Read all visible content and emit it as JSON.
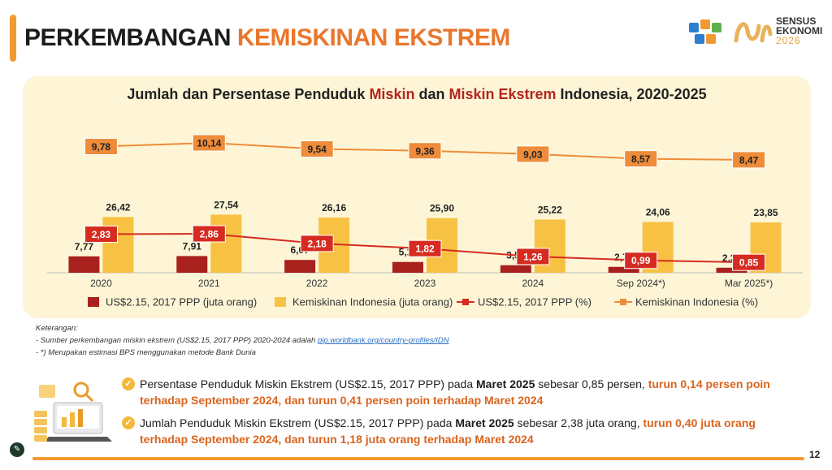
{
  "header": {
    "title_part1": "PERKEMBANGAN",
    "title_part2": "KEMISKINAN EKSTREM",
    "logo_line1": "SENSUS",
    "logo_line2": "EKONOMI",
    "logo_line3": "2026"
  },
  "chart_title": {
    "t1": "Jumlah dan Persentase Penduduk ",
    "t2": "Miskin",
    "t3": " dan ",
    "t4": "Miskin Ekstrem",
    "t5": " Indonesia, 2020-2025"
  },
  "chart_data": {
    "type": "bar+line",
    "categories": [
      "2020",
      "2021",
      "2022",
      "2023",
      "2024",
      "Sep 2024*)",
      "Mar 2025*)"
    ],
    "series": [
      {
        "name": "US$2.15, 2017 PPP (juta orang)",
        "kind": "bar",
        "color": "#a8211d",
        "values": [
          7.77,
          7.91,
          6.07,
          5.11,
          3.56,
          2.78,
          2.38
        ],
        "labels": [
          "7,77",
          "7,91",
          "6,07",
          "5,11",
          "3,56",
          "2,78",
          "2,38"
        ]
      },
      {
        "name": "Kemiskinan Indonesia (juta orang)",
        "kind": "bar",
        "color": "#f7c244",
        "values": [
          26.42,
          27.54,
          26.16,
          25.9,
          25.22,
          24.06,
          23.85
        ],
        "labels": [
          "26,42",
          "27,54",
          "26,16",
          "25,90",
          "25,22",
          "24,06",
          "23,85"
        ]
      },
      {
        "name": "US$2.15, 2017 PPP (%)",
        "kind": "line",
        "color": "#d62b21",
        "values": [
          2.83,
          2.86,
          2.18,
          1.82,
          1.26,
          0.99,
          0.85
        ],
        "labels": [
          "2,83",
          "2,86",
          "2,18",
          "1,82",
          "1,26",
          "0,99",
          "0,85"
        ]
      },
      {
        "name": "Kemiskinan Indonesia (%)",
        "kind": "line",
        "color": "#ee8c3a",
        "values": [
          9.78,
          10.14,
          9.54,
          9.36,
          9.03,
          8.57,
          8.47
        ],
        "labels": [
          "9,78",
          "10,14",
          "9,54",
          "9,36",
          "9,03",
          "8,57",
          "8,47"
        ]
      }
    ],
    "legend_position": "bottom"
  },
  "notes": {
    "heading": "Keterangan:",
    "note1_prefix": "-    Sumber perkembangan miskin ekstrem (US$2.15, 2017 PPP) 2020-2024 adalah ",
    "note1_link": "pip.worldbank.org/country-profiles/IDN",
    "note2": "-    *) Merupakan estimasi BPS menggunakan metode Bank Dunia"
  },
  "points": [
    {
      "a": "Persentase Penduduk Miskin Ekstrem (US$2.15, 2017 PPP) pada ",
      "b": "Maret 2025",
      "c": " sebesar 0,85 persen, ",
      "d": "turun 0,14 persen poin terhadap September 2024, dan turun 0,41 persen poin terhadap Maret 2024"
    },
    {
      "a": "Jumlah Penduduk Miskin Ekstrem (US$2.15, 2017 PPP) pada ",
      "b": "Maret 2025",
      "c": " sebesar 2,38 juta orang, ",
      "d": "turun 0,40 juta orang terhadap September 2024, dan turun 1,18 juta orang terhadap Maret 2024"
    }
  ],
  "footer": {
    "page_number": "12"
  }
}
